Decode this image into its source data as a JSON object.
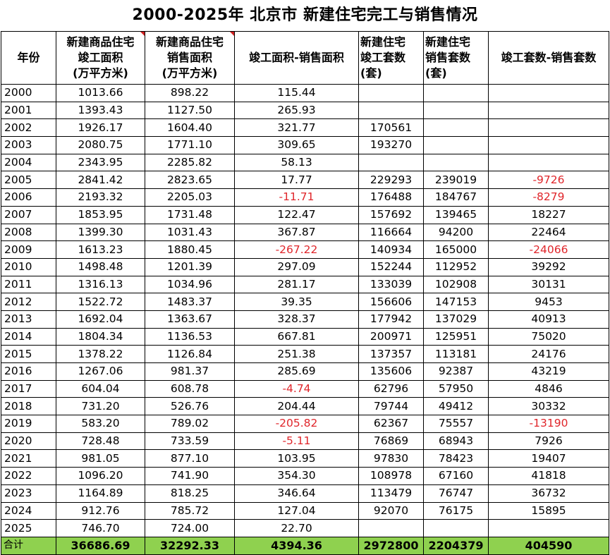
{
  "title": "2000-2025年 北京市 新建住宅完工与销售情况",
  "headers": [
    [
      "年份"
    ],
    [
      "新建商品住宅",
      "竣工面积",
      "(万平方米)"
    ],
    [
      "新建商品住宅",
      "销售面积",
      "(万平方米)"
    ],
    [
      "竣工面积-销售面积"
    ],
    [
      "新建住宅",
      "竣工套数",
      "(套)"
    ],
    [
      "新建住宅",
      "销售套数",
      "(套)"
    ],
    [
      "竣工套数-销售套数"
    ]
  ],
  "rows": [
    [
      "2000",
      "1013.66",
      "898.22",
      "115.44",
      "",
      "",
      ""
    ],
    [
      "2001",
      "1393.43",
      "1127.50",
      "265.93",
      "",
      "",
      ""
    ],
    [
      "2002",
      "1926.17",
      "1604.40",
      "321.77",
      "170561",
      "",
      ""
    ],
    [
      "2003",
      "2080.75",
      "1771.10",
      "309.65",
      "193270",
      "",
      ""
    ],
    [
      "2004",
      "2343.95",
      "2285.82",
      "58.13",
      "",
      "",
      ""
    ],
    [
      "2005",
      "2841.42",
      "2823.65",
      "17.77",
      "229293",
      "239019",
      "-9726"
    ],
    [
      "2006",
      "2193.32",
      "2205.03",
      "-11.71",
      "176488",
      "184767",
      "-8279"
    ],
    [
      "2007",
      "1853.95",
      "1731.48",
      "122.47",
      "157692",
      "139465",
      "18227"
    ],
    [
      "2008",
      "1399.30",
      "1031.43",
      "367.87",
      "116664",
      "94200",
      "22464"
    ],
    [
      "2009",
      "1613.23",
      "1880.45",
      "-267.22",
      "140934",
      "165000",
      "-24066"
    ],
    [
      "2010",
      "1498.48",
      "1201.39",
      "297.09",
      "152244",
      "112952",
      "39292"
    ],
    [
      "2011",
      "1316.13",
      "1034.96",
      "281.17",
      "133039",
      "102908",
      "30131"
    ],
    [
      "2012",
      "1522.72",
      "1483.37",
      "39.35",
      "156606",
      "147153",
      "9453"
    ],
    [
      "2013",
      "1692.04",
      "1363.67",
      "328.37",
      "177942",
      "137029",
      "40913"
    ],
    [
      "2014",
      "1804.34",
      "1136.53",
      "667.81",
      "200971",
      "125951",
      "75020"
    ],
    [
      "2015",
      "1378.22",
      "1126.84",
      "251.38",
      "137357",
      "113181",
      "24176"
    ],
    [
      "2016",
      "1267.06",
      "981.37",
      "285.69",
      "135606",
      "92387",
      "43219"
    ],
    [
      "2017",
      "604.04",
      "608.78",
      "-4.74",
      "62796",
      "57950",
      "4846"
    ],
    [
      "2018",
      "731.20",
      "526.76",
      "204.44",
      "79744",
      "49412",
      "30332"
    ],
    [
      "2019",
      "583.20",
      "789.02",
      "-205.82",
      "62367",
      "75557",
      "-13190"
    ],
    [
      "2020",
      "728.48",
      "733.59",
      "-5.11",
      "76869",
      "68943",
      "7926"
    ],
    [
      "2021",
      "981.05",
      "877.10",
      "103.95",
      "97830",
      "78423",
      "19407"
    ],
    [
      "2022",
      "1096.20",
      "741.90",
      "354.30",
      "108978",
      "67160",
      "41818"
    ],
    [
      "2023",
      "1164.89",
      "818.25",
      "346.64",
      "113479",
      "76747",
      "36732"
    ],
    [
      "2024",
      "912.76",
      "785.72",
      "127.04",
      "92070",
      "76175",
      "15895"
    ],
    [
      "2025",
      "746.70",
      "724.00",
      "22.70",
      "",
      "",
      ""
    ]
  ],
  "total": [
    "合计",
    "36686.69",
    "32292.33",
    "4394.36",
    "2972800",
    "2204379",
    "404590"
  ],
  "colors": {
    "negative": "#e0262b",
    "total_bg": "#8fd14f",
    "marker": "#d02020"
  }
}
